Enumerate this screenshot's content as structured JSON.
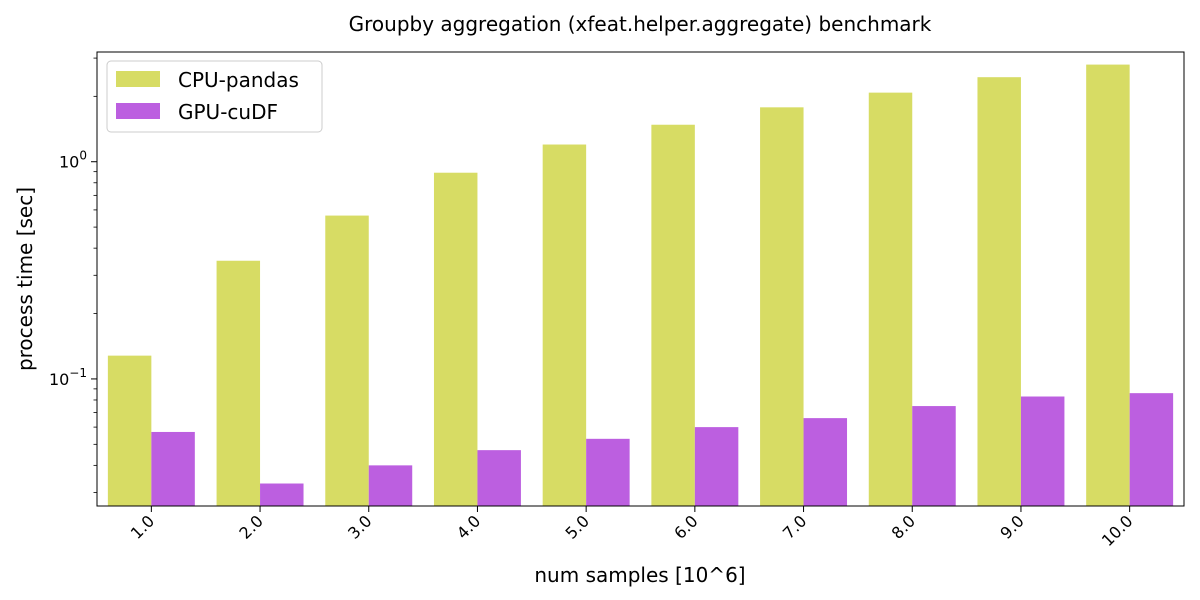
{
  "chart_data": {
    "type": "bar",
    "title": "Groupby aggregation (xfeat.helper.aggregate) benchmark",
    "xlabel": "num samples [10^6]",
    "ylabel": "process time [sec]",
    "yscale": "log",
    "ylim": [
      0.026,
      3.2
    ],
    "yticks": [
      {
        "value": 1.0,
        "base": "10",
        "exp": "0"
      },
      {
        "value": 0.1,
        "base": "10",
        "exp": "−1"
      }
    ],
    "categories": [
      "1.0",
      "2.0",
      "3.0",
      "4.0",
      "5.0",
      "6.0",
      "7.0",
      "8.0",
      "9.0",
      "10.0"
    ],
    "series": [
      {
        "name": "CPU-pandas",
        "color": "#d7dc64",
        "values": [
          0.128,
          0.35,
          0.565,
          0.89,
          1.2,
          1.48,
          1.78,
          2.08,
          2.45,
          2.8
        ]
      },
      {
        "name": "GPU-cuDF",
        "color": "#bc5fe0",
        "values": [
          0.057,
          0.033,
          0.04,
          0.047,
          0.053,
          0.06,
          0.066,
          0.075,
          0.083,
          0.086
        ]
      }
    ],
    "legend_position": "top-left",
    "grid": false
  }
}
